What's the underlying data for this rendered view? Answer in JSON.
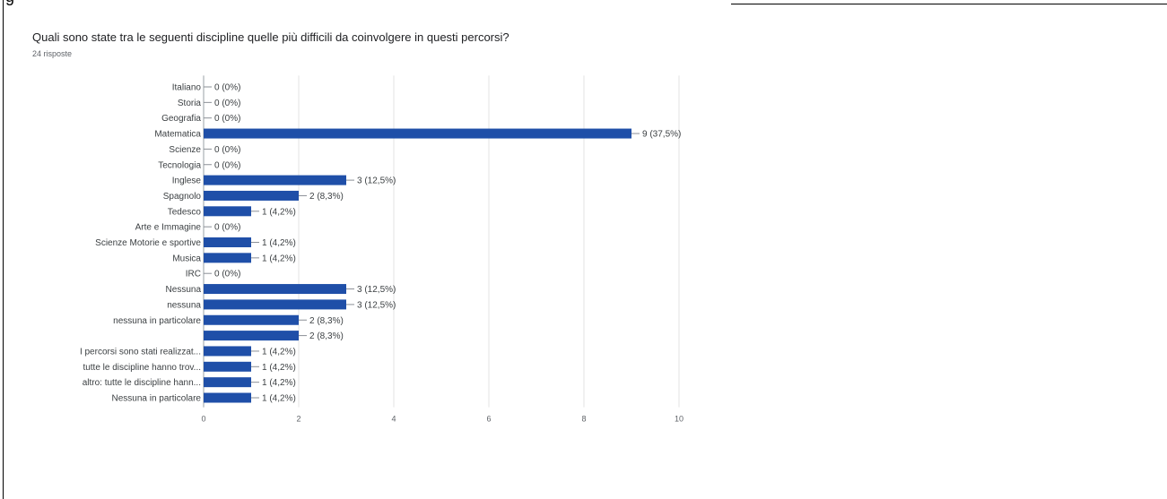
{
  "document": {
    "clipped_text": "g"
  },
  "chart_data": {
    "type": "bar",
    "orientation": "horizontal",
    "title": "Quali sono state  tra le seguenti discipline quelle più difficili da coinvolgere in questi percorsi?",
    "subtitle": "24 risposte",
    "categories": [
      "Italiano",
      "Storia",
      "Geografia",
      "Matematica",
      "Scienze",
      "Tecnologia",
      "Inglese",
      "Spagnolo",
      "Tedesco",
      "Arte e Immagine",
      "Scienze Motorie e sportive",
      "Musica",
      "IRC",
      "Nessuna",
      "nessuna",
      "nessuna in particolare",
      "",
      "I percorsi sono stati realizzat...",
      "tutte le discipline hanno trov...",
      "altro: tutte le discipline hann...",
      "Nessuna in particolare"
    ],
    "values": [
      0,
      0,
      0,
      9,
      0,
      0,
      3,
      2,
      1,
      0,
      1,
      1,
      0,
      3,
      3,
      2,
      2,
      1,
      1,
      1,
      1
    ],
    "value_labels": [
      "0 (0%)",
      "0 (0%)",
      "0 (0%)",
      "9 (37,5%)",
      "0 (0%)",
      "0 (0%)",
      "3 (12,5%)",
      "2 (8,3%)",
      "1 (4,2%)",
      "0 (0%)",
      "1 (4,2%)",
      "1 (4,2%)",
      "0 (0%)",
      "3 (12,5%)",
      "3 (12,5%)",
      "2 (8,3%)",
      "2 (8,3%)",
      "1 (4,2%)",
      "1 (4,2%)",
      "1 (4,2%)",
      "1 (4,2%)"
    ],
    "xlim": [
      0,
      10
    ],
    "xticks": [
      "0",
      "2",
      "4",
      "6",
      "8",
      "10"
    ],
    "xtick_values": [
      0,
      2,
      4,
      6,
      8,
      10
    ],
    "grid": true,
    "legend": "none",
    "bar_color": "#1f4fa8"
  }
}
